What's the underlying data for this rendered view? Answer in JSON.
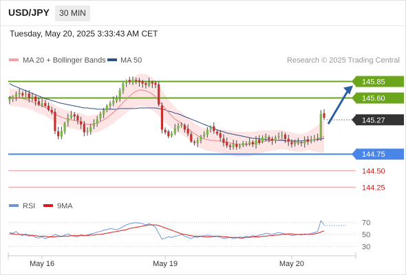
{
  "header": {
    "symbol": "USD/JPY",
    "timeframe": "30 MIN"
  },
  "timestamp": "Tuesday, May 20, 2025 3:33:43 AM CET",
  "credit": "Research © 2025 Trading Central",
  "colors": {
    "resistance": "#6aa51c",
    "support": "#4a86e8",
    "minor": "#f3a3a3",
    "minor_text": "#cc1f1f",
    "last": "#333333",
    "ma20": "#f08080",
    "ma50": "#2c4f86",
    "rsi": "#6d94d6",
    "rsi_ma": "#d81b1b",
    "arrow": "#2e5fa3",
    "up": "#7ab648",
    "down": "#c5312f"
  },
  "chart_data": [
    {
      "type": "candlestick",
      "legend": [
        {
          "label": "MA 20 + Bollinger Bands"
        },
        {
          "label": "MA 50"
        }
      ],
      "ylim": [
        144.18,
        145.97
      ],
      "x_ticks": [
        {
          "label": "May 16",
          "index": 10
        },
        {
          "label": "May 19",
          "index": 48
        },
        {
          "label": "May 20",
          "index": 87
        }
      ],
      "levels": [
        {
          "label": "145.85",
          "value": 145.85,
          "kind": "resistance"
        },
        {
          "label": "145.60",
          "value": 145.6,
          "kind": "resistance"
        },
        {
          "label": "145.27",
          "value": 145.27,
          "kind": "last"
        },
        {
          "label": "144.75",
          "value": 144.75,
          "kind": "support"
        },
        {
          "label": "144.50",
          "value": 144.5,
          "kind": "minor"
        },
        {
          "label": "144.25",
          "value": 144.25,
          "kind": "minor"
        }
      ],
      "closes": [
        145.58,
        145.62,
        145.66,
        145.68,
        145.64,
        145.66,
        145.6,
        145.62,
        145.55,
        145.5,
        145.52,
        145.48,
        145.42,
        145.38,
        145.1,
        145.02,
        145.1,
        145.22,
        145.3,
        145.34,
        145.32,
        145.26,
        145.2,
        145.08,
        145.1,
        145.16,
        145.22,
        145.28,
        145.36,
        145.42,
        145.48,
        145.52,
        145.56,
        145.6,
        145.72,
        145.82,
        145.86,
        145.84,
        145.88,
        145.86,
        145.84,
        145.82,
        145.8,
        145.84,
        145.82,
        145.8,
        145.5,
        145.12,
        145.08,
        145.02,
        145.06,
        145.14,
        145.18,
        145.2,
        145.12,
        145.06,
        144.94,
        144.92,
        144.96,
        145.02,
        145.05,
        145.12,
        145.16,
        145.1,
        145.06,
        145.0,
        144.92,
        144.88,
        144.86,
        144.9,
        144.86,
        144.88,
        144.92,
        144.9,
        144.94,
        144.9,
        144.96,
        144.92,
        145.0,
        145.02,
        144.98,
        144.96,
        145.0,
        145.02,
        145.04,
        144.98,
        144.94,
        144.9,
        144.92,
        144.94,
        144.92,
        144.96,
        144.94,
        144.96,
        144.98,
        145.0,
        145.36,
        145.3
      ],
      "ma20": [
        145.62,
        145.61,
        145.6,
        145.6,
        145.59,
        145.58,
        145.56,
        145.54,
        145.52,
        145.5,
        145.48,
        145.46,
        145.43,
        145.4,
        145.36,
        145.33,
        145.31,
        145.29,
        145.28,
        145.27,
        145.26,
        145.25,
        145.24,
        145.22,
        145.2,
        145.2,
        145.21,
        145.22,
        145.24,
        145.27,
        145.3,
        145.34,
        145.38,
        145.43,
        145.48,
        145.53,
        145.58,
        145.63,
        145.67,
        145.7,
        145.72,
        145.72,
        145.71,
        145.69,
        145.66,
        145.62,
        145.56,
        145.5,
        145.44,
        145.38,
        145.33,
        145.28,
        145.25,
        145.22,
        145.18,
        145.14,
        145.1,
        145.06,
        145.03,
        145.0,
        144.98,
        144.97,
        144.96,
        144.96,
        144.95,
        144.95,
        144.94,
        144.93,
        144.92,
        144.91,
        144.9,
        144.9,
        144.9,
        144.9,
        144.9,
        144.91,
        144.92,
        144.93,
        144.94,
        144.95,
        144.95,
        144.96,
        144.96,
        144.97,
        144.97,
        144.96,
        144.95,
        144.94,
        144.93,
        144.92,
        144.92,
        144.93,
        144.95,
        144.96,
        144.97,
        144.98,
        145.0,
        145.02
      ],
      "ma50": [
        145.82,
        145.79,
        145.77,
        145.75,
        145.73,
        145.71,
        145.69,
        145.67,
        145.65,
        145.63,
        145.61,
        145.59,
        145.58,
        145.56,
        145.55,
        145.53,
        145.52,
        145.51,
        145.5,
        145.49,
        145.48,
        145.47,
        145.46,
        145.45,
        145.45,
        145.44,
        145.44,
        145.43,
        145.43,
        145.43,
        145.43,
        145.43,
        145.43,
        145.43,
        145.44,
        145.44,
        145.44,
        145.44,
        145.44,
        145.44,
        145.45,
        145.45,
        145.45,
        145.45,
        145.45,
        145.45,
        145.44,
        145.43,
        145.42,
        145.4,
        145.39,
        145.37,
        145.36,
        145.34,
        145.32,
        145.3,
        145.28,
        145.26,
        145.24,
        145.22,
        145.2,
        145.18,
        145.16,
        145.14,
        145.12,
        145.1,
        145.09,
        145.07,
        145.06,
        145.05,
        145.04,
        145.03,
        145.02,
        145.01,
        145.0,
        144.99,
        144.99,
        144.98,
        144.98,
        144.97,
        144.97,
        144.96,
        144.96,
        144.96,
        144.96,
        144.95,
        144.95,
        144.95,
        144.95,
        144.95,
        144.95,
        144.96,
        144.96,
        144.96,
        144.97,
        144.97,
        144.98,
        144.99
      ]
    },
    {
      "type": "line",
      "legend": [
        {
          "label": "RSI"
        },
        {
          "label": "9MA"
        }
      ],
      "ylim": [
        20,
        80
      ],
      "y_ticks": [
        "70",
        "50",
        "30"
      ],
      "series": [
        {
          "name": "RSI",
          "values": [
            53,
            52,
            55,
            50,
            48,
            51,
            47,
            49,
            45,
            44,
            46,
            43,
            45,
            47,
            50,
            48,
            46,
            49,
            51,
            48,
            47,
            46,
            50,
            48,
            49,
            51,
            52,
            54,
            55,
            57,
            58,
            60,
            59,
            58,
            60,
            63,
            66,
            68,
            69,
            70,
            69,
            68,
            66,
            68,
            66,
            62,
            52,
            42,
            44,
            46,
            45,
            47,
            48,
            50,
            47,
            45,
            43,
            46,
            45,
            47,
            48,
            49,
            48,
            46,
            47,
            45,
            43,
            44,
            45,
            43,
            44,
            46,
            45,
            47,
            46,
            48,
            47,
            49,
            50,
            52,
            51,
            50,
            52,
            53,
            52,
            51,
            50,
            48,
            49,
            50,
            49,
            51,
            50,
            52,
            53,
            55,
            73,
            66
          ]
        },
        {
          "name": "9MA",
          "values": [
            51,
            51,
            50,
            50,
            50,
            49,
            49,
            48,
            48,
            47,
            47,
            47,
            46,
            46,
            46,
            47,
            47,
            47,
            47,
            48,
            48,
            48,
            48,
            48,
            48,
            49,
            49,
            50,
            50,
            51,
            52,
            53,
            54,
            55,
            56,
            57,
            58,
            60,
            61,
            62,
            63,
            64,
            65,
            66,
            66,
            66,
            65,
            63,
            61,
            59,
            57,
            55,
            53,
            51,
            50,
            49,
            48,
            47,
            47,
            47,
            46,
            46,
            46,
            47,
            47,
            47,
            46,
            46,
            45,
            45,
            45,
            44,
            44,
            45,
            45,
            46,
            46,
            46,
            47,
            47,
            48,
            48,
            49,
            49,
            50,
            50,
            51,
            51,
            50,
            50,
            50,
            50,
            50,
            50,
            51,
            52,
            54,
            56
          ]
        }
      ]
    }
  ]
}
